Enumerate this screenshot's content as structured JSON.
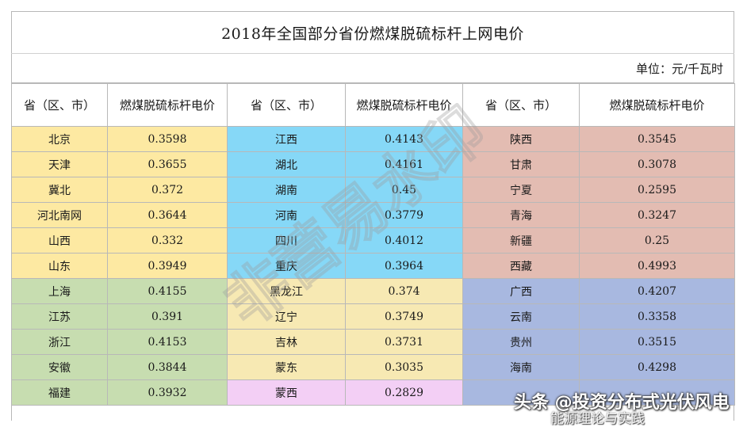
{
  "title": "2018年全国部分省份燃煤脱硫标杆上网电价",
  "unit": "单位：元/千瓦时",
  "headers": [
    "省（区、市）",
    "燃煤脱硫标杆电价",
    "省（区、市）",
    "燃煤脱硫标杆电价",
    "省（区、市）",
    "燃煤脱硫标杆电价"
  ],
  "rows": [
    [
      {
        "name": "北京",
        "price": "0.3598"
      },
      {
        "name": "江西",
        "price": "0.4143"
      },
      {
        "name": "陕西",
        "price": "0.3545"
      }
    ],
    [
      {
        "name": "天津",
        "price": "0.3655"
      },
      {
        "name": "湖北",
        "price": "0.4161"
      },
      {
        "name": "甘肃",
        "price": "0.3078"
      }
    ],
    [
      {
        "name": "冀北",
        "price": "0.372"
      },
      {
        "name": "湖南",
        "price": "0.45"
      },
      {
        "name": "宁夏",
        "price": "0.2595"
      }
    ],
    [
      {
        "name": "河北南网",
        "price": "0.3644"
      },
      {
        "name": "河南",
        "price": "0.3779"
      },
      {
        "name": "青海",
        "price": "0.3247"
      }
    ],
    [
      {
        "name": "山西",
        "price": "0.332"
      },
      {
        "name": "四川",
        "price": "0.4012"
      },
      {
        "name": "新疆",
        "price": "0.25"
      }
    ],
    [
      {
        "name": "山东",
        "price": "0.3949"
      },
      {
        "name": "重庆",
        "price": "0.3964"
      },
      {
        "name": "西藏",
        "price": "0.4993"
      }
    ],
    [
      {
        "name": "上海",
        "price": "0.4155"
      },
      {
        "name": "黑龙江",
        "price": "0.374"
      },
      {
        "name": "广西",
        "price": "0.4207"
      }
    ],
    [
      {
        "name": "江苏",
        "price": "0.391"
      },
      {
        "name": "辽宁",
        "price": "0.3749"
      },
      {
        "name": "云南",
        "price": "0.3358"
      }
    ],
    [
      {
        "name": "浙江",
        "price": "0.4153"
      },
      {
        "name": "吉林",
        "price": "0.3731"
      },
      {
        "name": "贵州",
        "price": "0.3515"
      }
    ],
    [
      {
        "name": "安徽",
        "price": "0.3844"
      },
      {
        "name": "蒙东",
        "price": "0.3035"
      },
      {
        "name": "海南",
        "price": "0.4298"
      }
    ],
    [
      {
        "name": "福建",
        "price": "0.3932"
      },
      {
        "name": "蒙西",
        "price": "0.2829"
      },
      {
        "name": "",
        "price": ""
      }
    ]
  ],
  "row_groups": {
    "col1": [
      "yellow",
      "yellow",
      "yellow",
      "yellow",
      "yellow",
      "yellow",
      "green",
      "green",
      "green",
      "green",
      "green"
    ],
    "col2": [
      "cyan",
      "cyan",
      "cyan",
      "cyan",
      "cyan",
      "cyan",
      "cream",
      "cream",
      "cream",
      "cream",
      "magenta"
    ],
    "col3": [
      "pink",
      "pink",
      "pink",
      "pink",
      "pink",
      "pink",
      "blue",
      "blue",
      "blue",
      "blue",
      "blue"
    ]
  },
  "colors": {
    "yellow": "#fde9a2",
    "cyan": "#86d8f7",
    "pink": "#e3bcb2",
    "green": "#c7ddb0",
    "cream": "#f7e9b3",
    "blue": "#a8b8e0",
    "magenta": "#f3cff5",
    "border": "#b8b8b8"
  },
  "watermark": {
    "text": "非营易水印"
  },
  "attribution": {
    "main": "头条 @投资分布式光伏风电",
    "sub": "能源理论与实践",
    "icon": "wechat-icon"
  }
}
